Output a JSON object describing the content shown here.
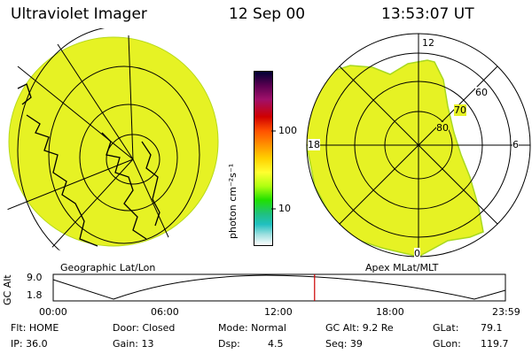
{
  "header": {
    "instrument": "Ultraviolet Imager",
    "date": "12 Sep 00",
    "time": "13:53:07 UT"
  },
  "left_panel": {
    "label": "Geographic Lat/Lon"
  },
  "right_panel": {
    "label": "Apex MLat/MLT",
    "mlt_labels": {
      "top": "12",
      "left": "18",
      "right": "6",
      "bottom": "0"
    },
    "lat_labels": [
      "80",
      "70",
      "60"
    ]
  },
  "colorbar": {
    "unit_label": "photon cm⁻²s⁻¹",
    "ticks": [
      "100",
      "10"
    ],
    "colors": [
      "#000033",
      "#5a0050",
      "#a0106a",
      "#d00000",
      "#ff5000",
      "#ff9000",
      "#ffd000",
      "#ffff30",
      "#b0ff10",
      "#20e000",
      "#20c080",
      "#20c0c0",
      "#a0e0e0",
      "#ffffff"
    ]
  },
  "altitude_plot": {
    "ylabel": "GC Alt",
    "y_ticks": [
      "9.0",
      "1.8"
    ],
    "x_ticks": [
      "00:00",
      "06:00",
      "12:00",
      "18:00",
      "23:59"
    ],
    "current_time_fraction": 0.578
  },
  "footer": {
    "row1": [
      {
        "key": "Flt: HOME"
      },
      {
        "key": "Door: Closed"
      },
      {
        "key": "Mode: Normal"
      },
      {
        "key": "GC Alt: 9.2 Re"
      },
      {
        "key": "GLat:",
        "val": "79.1"
      }
    ],
    "row2": [
      {
        "key": "IP: 36.0"
      },
      {
        "key": "Gain: 13"
      },
      {
        "key": "Dsp:",
        "val": "4.5"
      },
      {
        "key": "Seq: 39"
      },
      {
        "key": "GLon:",
        "val": "119.7"
      }
    ]
  },
  "colors": {
    "auroral_fill": "#e6f224",
    "grid": "#000000",
    "marker": "#cc0000"
  }
}
